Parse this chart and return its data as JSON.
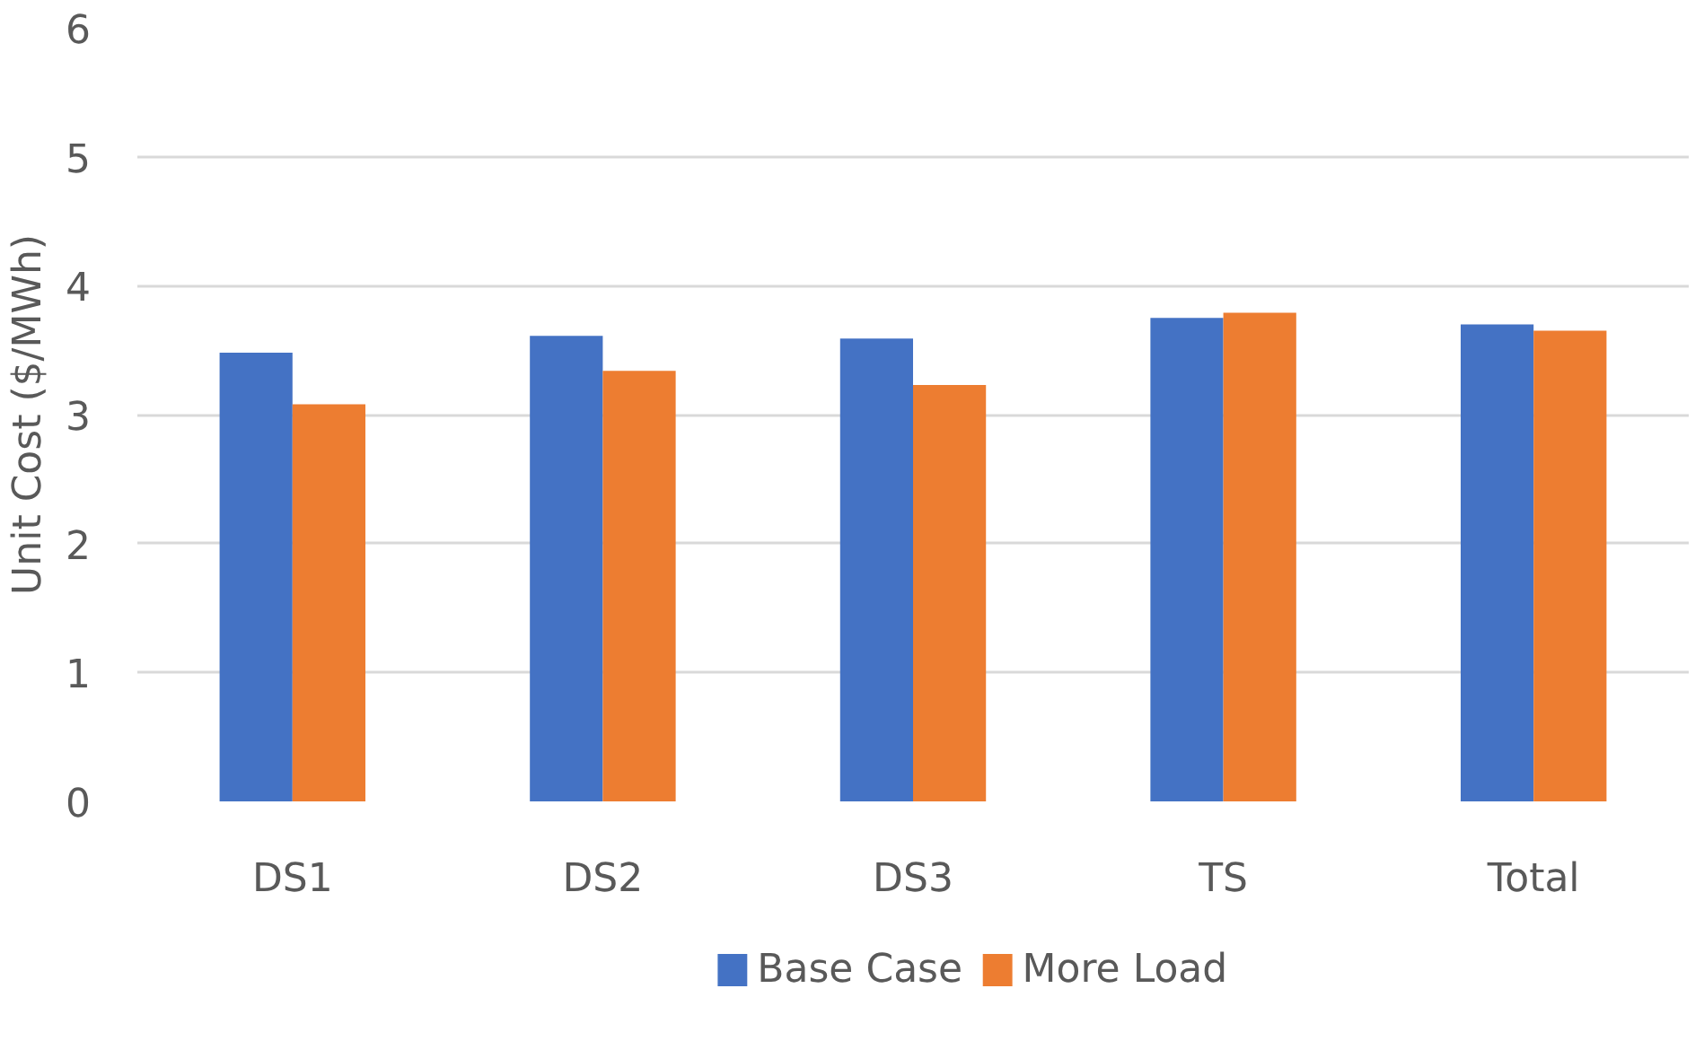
{
  "chart_data": {
    "type": "bar",
    "ylabel": "Unit Cost ($/MWh)",
    "categories": [
      "DS1",
      "DS2",
      "DS3",
      "TS",
      "Total"
    ],
    "series": [
      {
        "name": "Base Case",
        "color": "#4472c4",
        "values": [
          3.48,
          3.61,
          3.59,
          3.75,
          3.7
        ]
      },
      {
        "name": "More Load",
        "color": "#ed7d31",
        "values": [
          3.08,
          3.34,
          3.23,
          3.79,
          3.65
        ]
      }
    ],
    "ylim": [
      0,
      6
    ],
    "yticks": [
      0,
      1,
      2,
      3,
      4,
      5,
      6
    ],
    "grid": "y",
    "legend": "bottom"
  }
}
